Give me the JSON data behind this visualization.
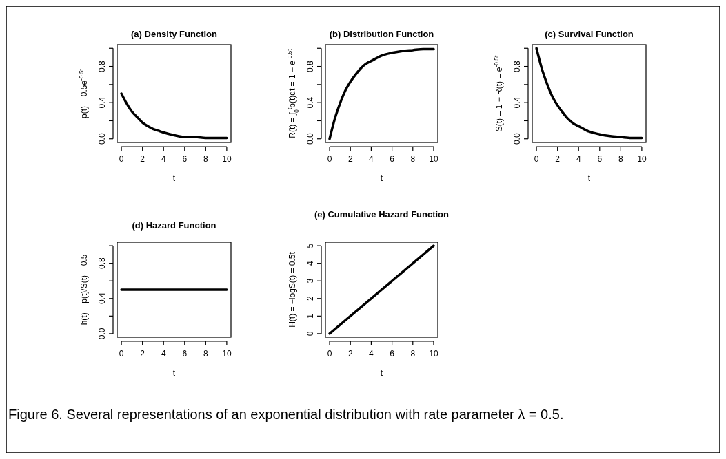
{
  "chart_data": [
    {
      "type": "line",
      "title": "(a) Density Function",
      "xlabel": "t",
      "ylabel": "p(t) = 0.5e$^{-0.5t}$",
      "xlim": [
        -0.4,
        10.4
      ],
      "xticks": [
        0,
        2,
        4,
        6,
        8,
        10
      ],
      "ylim": [
        -0.04,
        1.04
      ],
      "yticks": [
        {
          "value": 0,
          "label": "0.0"
        },
        {
          "value": 0.2,
          "label": null
        },
        0.4,
        {
          "value": 0.6,
          "label": null
        },
        0.8,
        {
          "value": 1,
          "label": null
        }
      ],
      "x": [
        0,
        0.5,
        1,
        1.5,
        2,
        2.5,
        3,
        3.5,
        4,
        5,
        6,
        7,
        8,
        9,
        10
      ],
      "series": [
        {
          "color": "#000000",
          "values": [
            0.5,
            0.39,
            0.3,
            0.24,
            0.18,
            0.14,
            0.11,
            0.09,
            0.07,
            0.04,
            0.02,
            0.02,
            0.01,
            0.01,
            0.01
          ]
        }
      ],
      "annotations": [
        "Figure 6.  Several representations of an exponential distribution with rate parameter λ = 0.5."
      ]
    },
    {
      "type": "line",
      "title": "(b) Distribution Function",
      "xlabel": "t",
      "ylabel": "R(t) = ∫$_{0}$$^{t}$p(t)dt = 1 − e$^{-0.5t}$",
      "xlim": [
        -0.4,
        10.4
      ],
      "xticks": [
        0,
        2,
        4,
        6,
        8,
        10
      ],
      "ylim": [
        -0.04,
        1.04
      ],
      "yticks": [
        {
          "value": 0,
          "label": "0.0"
        },
        {
          "value": 0.2,
          "label": null
        },
        0.4,
        {
          "value": 0.6,
          "label": null
        },
        0.8,
        {
          "value": 1,
          "label": null
        }
      ],
      "x": [
        0,
        0.5,
        1,
        1.5,
        2,
        2.5,
        3,
        3.5,
        4,
        5,
        6,
        7,
        8,
        9,
        10
      ],
      "series": [
        {
          "color": "#000000",
          "values": [
            0,
            0.22,
            0.39,
            0.53,
            0.63,
            0.71,
            0.78,
            0.83,
            0.86,
            0.92,
            0.95,
            0.97,
            0.98,
            0.99,
            0.99
          ]
        }
      ]
    },
    {
      "type": "line",
      "title": "(c) Survival Function",
      "xlabel": "t",
      "ylabel": "S(t) = 1 − R(t) = e$^{-0.5t}$",
      "xlim": [
        -0.4,
        10.4
      ],
      "xticks": [
        0,
        2,
        4,
        6,
        8,
        10
      ],
      "ylim": [
        -0.04,
        1.04
      ],
      "yticks": [
        {
          "value": 0,
          "label": "0.0"
        },
        {
          "value": 0.2,
          "label": null
        },
        0.4,
        {
          "value": 0.6,
          "label": null
        },
        0.8,
        {
          "value": 1,
          "label": null
        }
      ],
      "x": [
        0,
        0.5,
        1,
        1.5,
        2,
        2.5,
        3,
        3.5,
        4,
        5,
        6,
        7,
        8,
        9,
        10
      ],
      "series": [
        {
          "color": "#000000",
          "values": [
            1,
            0.78,
            0.61,
            0.47,
            0.37,
            0.29,
            0.22,
            0.17,
            0.14,
            0.08,
            0.05,
            0.03,
            0.02,
            0.01,
            0.01
          ]
        }
      ]
    },
    {
      "type": "line",
      "title": "(d) Hazard Function",
      "xlabel": "t",
      "ylabel": "h(t) = p(t)/S(t) = 0.5",
      "xlim": [
        -0.4,
        10.4
      ],
      "xticks": [
        0,
        2,
        4,
        6,
        8,
        10
      ],
      "ylim": [
        -0.04,
        1.04
      ],
      "yticks": [
        {
          "value": 0,
          "label": "0.0"
        },
        {
          "value": 0.2,
          "label": null
        },
        0.4,
        {
          "value": 0.6,
          "label": null
        },
        0.8,
        {
          "value": 1,
          "label": null
        }
      ],
      "x": [
        0,
        10
      ],
      "series": [
        {
          "color": "#000000",
          "values": [
            0.5,
            0.5
          ]
        }
      ]
    },
    {
      "type": "line",
      "title": "(e) Cumulative Hazard Function",
      "xlabel": "t",
      "ylabel": "H(t) = −logS(t) = 0.5t",
      "xlim": [
        -0.4,
        10.4
      ],
      "xticks": [
        0,
        2,
        4,
        6,
        8,
        10
      ],
      "ylim": [
        -0.2,
        5.2
      ],
      "yticks": [
        0,
        1,
        2,
        3,
        4,
        5
      ],
      "x": [
        0,
        10
      ],
      "series": [
        {
          "color": "#000000",
          "values": [
            0,
            5
          ]
        }
      ]
    }
  ]
}
